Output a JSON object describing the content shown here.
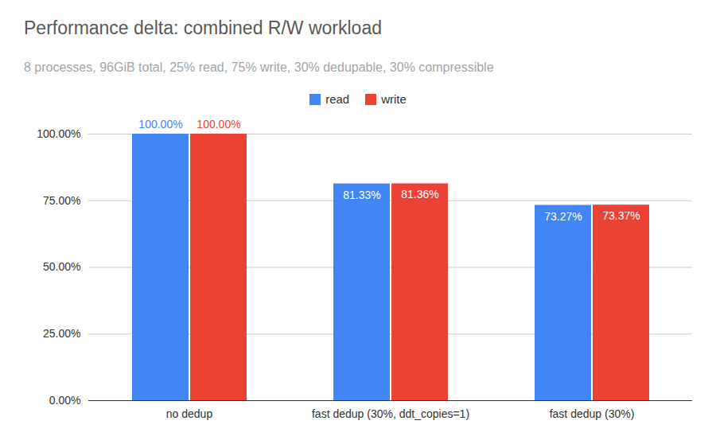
{
  "chart_data": {
    "type": "bar",
    "title": "Performance delta: combined R/W workload",
    "subtitle": "8 processes, 96GiB total, 25% read, 75% write, 30% dedupable, 30% compressible",
    "categories": [
      "no dedup",
      "fast dedup (30%, ddt_copies=1)",
      "fast dedup (30%)"
    ],
    "series": [
      {
        "name": "read",
        "color": "#4285f4",
        "values": [
          100,
          81.33,
          73.27
        ],
        "value_labels": [
          "100.00%",
          "81.33%",
          "73.27%"
        ]
      },
      {
        "name": "write",
        "color": "#ea4335",
        "values": [
          100,
          81.36,
          73.37
        ],
        "value_labels": [
          "100.00%",
          "81.36%",
          "73.37%"
        ]
      }
    ],
    "ylim": [
      0,
      100
    ],
    "yticks": [
      {
        "value": 0,
        "label": "0.00%"
      },
      {
        "value": 25,
        "label": "25.00%"
      },
      {
        "value": 50,
        "label": "50.00%"
      },
      {
        "value": 75,
        "label": "75.00%"
      },
      {
        "value": 100,
        "label": "100.00%"
      }
    ],
    "grid": true,
    "legend": "top",
    "data_labels": true
  }
}
